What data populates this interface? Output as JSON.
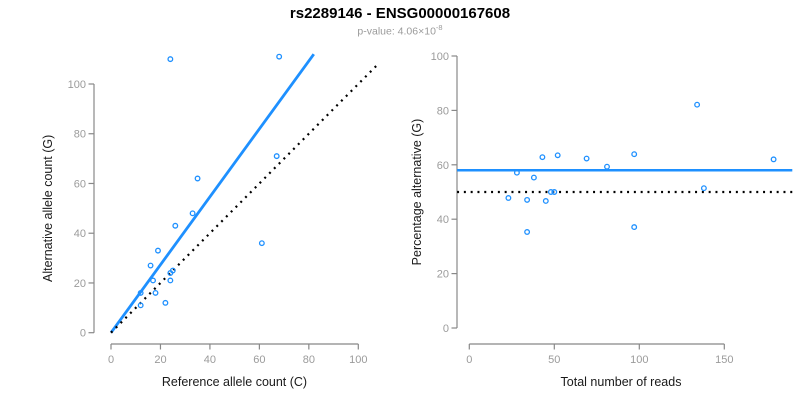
{
  "figure": {
    "title": "rs2289146 - ENSG00000167608",
    "subtitle": {
      "base": "p-value: 4.06×10",
      "exponent": "-8"
    }
  },
  "colors": {
    "accent_blue": "#1e90ff",
    "axis_gray": "#888888",
    "tick_label_gray": "#9b9b9b",
    "label_black": "#1a1a1a",
    "dotted_black": "#000000"
  },
  "chart_data": [
    {
      "type": "scatter",
      "panel": "left",
      "xlabel": "Reference allele count (C)",
      "ylabel": "Alternative allele count (G)",
      "xticks": [
        0,
        20,
        40,
        60,
        80,
        100
      ],
      "yticks": [
        0,
        20,
        40,
        60,
        80,
        100
      ],
      "xlim": [
        0,
        108
      ],
      "ylim": [
        0,
        113
      ],
      "grid": false,
      "legend": "none",
      "points": [
        [
          24,
          110
        ],
        [
          68,
          111
        ],
        [
          67,
          71
        ],
        [
          35,
          62
        ],
        [
          33,
          48
        ],
        [
          26,
          43
        ],
        [
          19,
          33
        ],
        [
          16,
          27
        ],
        [
          24,
          24
        ],
        [
          25,
          25
        ],
        [
          24,
          21
        ],
        [
          17,
          21
        ],
        [
          12,
          16
        ],
        [
          18,
          16
        ],
        [
          12,
          11
        ],
        [
          22,
          12
        ],
        [
          61,
          36
        ]
      ],
      "lines": [
        {
          "name": "fit-line",
          "kind": "segment",
          "style": "solid",
          "color": "#1e90ff",
          "width": 2.8,
          "x1": 0,
          "y1": 0,
          "x2": 82,
          "y2": 112
        },
        {
          "name": "identity-line",
          "kind": "segment",
          "style": "dotted",
          "color": "#000000",
          "width": 2.2,
          "x1": 0,
          "y1": 0,
          "x2": 108,
          "y2": 108
        }
      ]
    },
    {
      "type": "scatter",
      "panel": "right",
      "xlabel": "Total number of reads",
      "ylabel": "Percentage alternative (G)",
      "xticks": [
        0,
        50,
        100,
        150
      ],
      "yticks": [
        0,
        20,
        40,
        60,
        80,
        100
      ],
      "xlim": [
        -7,
        190
      ],
      "ylim": [
        0,
        100
      ],
      "grid": false,
      "legend": "none",
      "points": [
        [
          134,
          82.1
        ],
        [
          179,
          62.0
        ],
        [
          138,
          51.4
        ],
        [
          97,
          63.9
        ],
        [
          81,
          59.3
        ],
        [
          69,
          62.3
        ],
        [
          52,
          63.5
        ],
        [
          43,
          62.8
        ],
        [
          48,
          50.0
        ],
        [
          50,
          50.0
        ],
        [
          45,
          46.7
        ],
        [
          38,
          55.3
        ],
        [
          28,
          57.1
        ],
        [
          34,
          47.1
        ],
        [
          23,
          47.8
        ],
        [
          34,
          35.3
        ],
        [
          97,
          37.1
        ]
      ],
      "lines": [
        {
          "name": "mean-line",
          "kind": "hline",
          "style": "solid",
          "color": "#1e90ff",
          "width": 2.6,
          "y": 58,
          "x1": -7.2,
          "x2": 190
        },
        {
          "name": "null-line",
          "kind": "hline",
          "style": "dotted",
          "color": "#000000",
          "width": 2.2,
          "y": 50,
          "x1": -7.2,
          "x2": 190
        }
      ]
    }
  ]
}
